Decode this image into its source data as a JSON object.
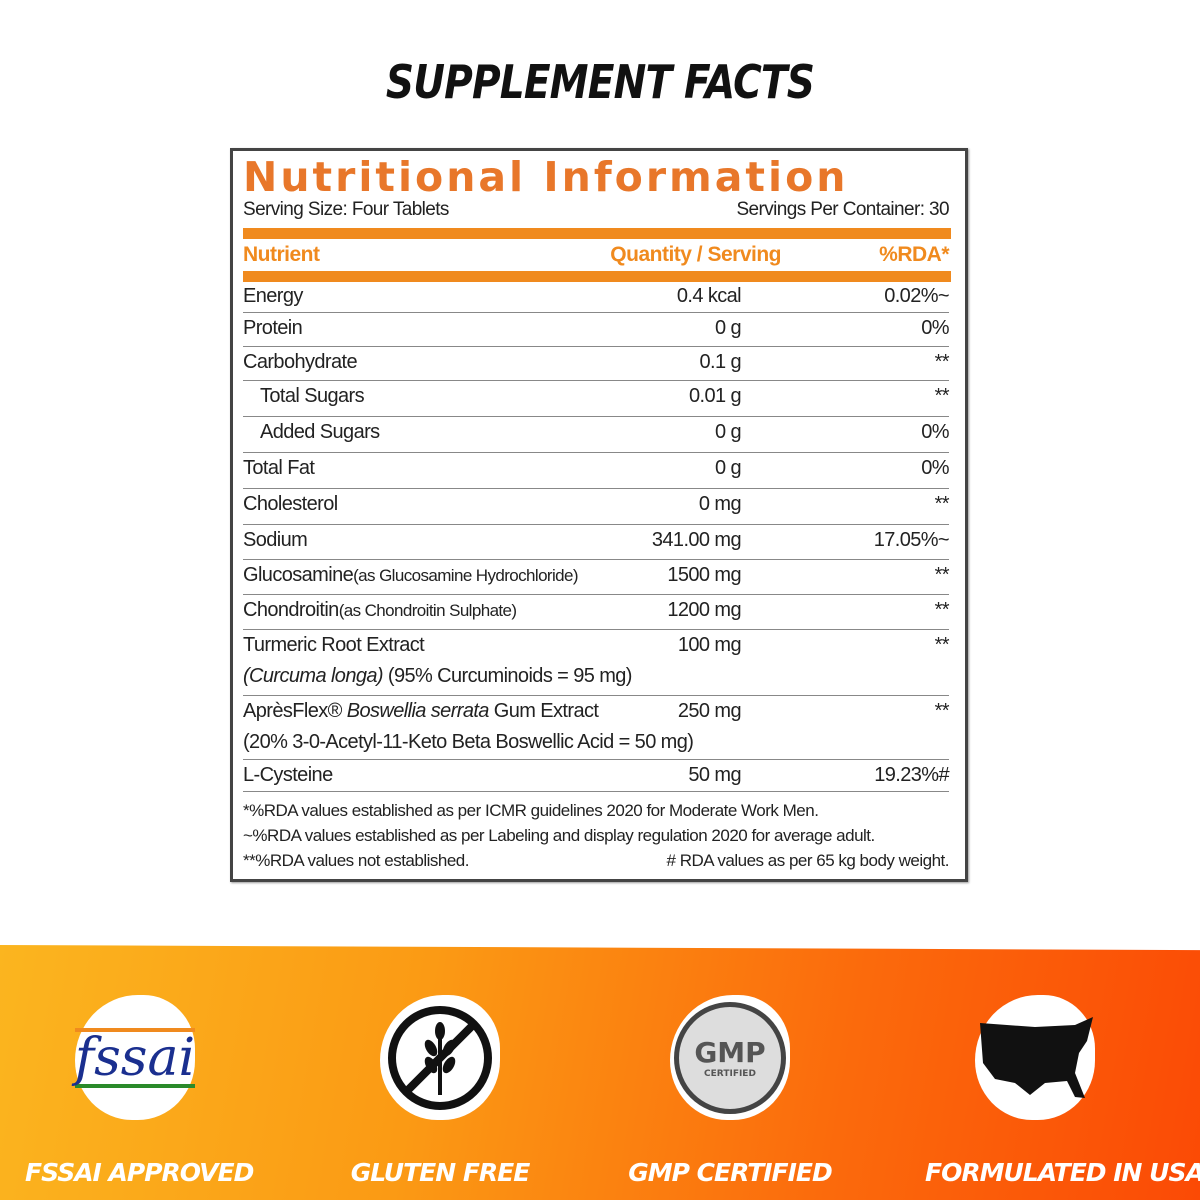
{
  "heading": "SUPPLEMENT FACTS",
  "panel": {
    "title": "Nutritional Information",
    "serving_size": "Serving Size: Four Tablets",
    "servings_per_container": "Servings Per Container: 30",
    "headers": {
      "nutrient": "Nutrient",
      "quantity": "Quantity / Serving",
      "rda": "%RDA*"
    },
    "rows": [
      {
        "name": "Energy",
        "qty": "0.4 kcal",
        "rda": "0.02%~"
      },
      {
        "name": "Protein",
        "qty": "0 g",
        "rda": "0%"
      },
      {
        "name": "Carbohydrate",
        "qty": "0.1 g",
        "rda": "**"
      },
      {
        "name": "Total Sugars",
        "qty": "0.01 g",
        "rda": "**"
      },
      {
        "name": "Added Sugars",
        "qty": "0 g",
        "rda": "0%"
      },
      {
        "name": "Total Fat",
        "qty": "0 g",
        "rda": "0%"
      },
      {
        "name": "Cholesterol",
        "qty": "0 mg",
        "rda": "**"
      },
      {
        "name": "Sodium",
        "qty": "341.00 mg",
        "rda": "17.05%~"
      },
      {
        "name": "Glucosamine",
        "sub": "(as Glucosamine Hydrochloride)",
        "qty": "1500 mg",
        "rda": "**"
      },
      {
        "name": "Chondroitin",
        "sub": "(as Chondroitin Sulphate)",
        "qty": "1200 mg",
        "rda": "**"
      },
      {
        "name": "Turmeric Root Extract",
        "line2_italic": "(Curcuma longa)",
        "line2": " (95% Curcuminoids = 95 mg)",
        "qty": "100 mg",
        "rda": "**"
      },
      {
        "name": "AprèsFlex®",
        "name_italic": " Boswellia serrata",
        "name_rest": " Gum Extract",
        "line2": " (20% 3-0-Acetyl-11-Keto Beta Boswellic Acid = 50 mg)",
        "qty": "250 mg",
        "rda": "**"
      },
      {
        "name": "L-Cysteine",
        "qty": "50 mg",
        "rda": "19.23%#"
      }
    ],
    "footnotes": [
      "*%RDA values established as per ICMR guidelines 2020 for Moderate Work Men.",
      "~%RDA values established as per Labeling and display regulation 2020 for average adult.",
      "**%RDA values not established.",
      "# RDA values as per 65 kg body weight."
    ]
  },
  "badges": [
    {
      "label": "FSSAI APPROVED",
      "icon": "fssai-logo",
      "logo_text": "fssai"
    },
    {
      "label": "GLUTEN FREE",
      "icon": "gluten-free-icon"
    },
    {
      "label": "GMP CERTIFIED",
      "icon": "gmp-seal",
      "logo_text": "GMP",
      "seal_sub": "CERTIFIED"
    },
    {
      "label": "FORMULATED IN USA",
      "icon": "usa-map-icon"
    }
  ],
  "colors": {
    "accent": "#f08a1e",
    "title_orange": "#e8772a",
    "band_start": "#fbb51f",
    "band_end": "#fb4a05"
  }
}
